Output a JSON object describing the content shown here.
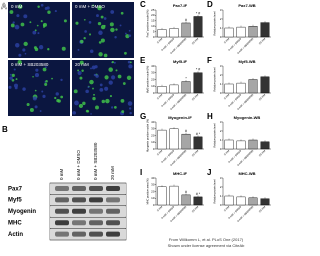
{
  "figure": {
    "panel_a": {
      "letter": "A",
      "images": [
        "0 mM",
        "0 mM + DMSO",
        "0 mM + SB203580",
        "20 mM"
      ]
    },
    "panel_b": {
      "letter": "B",
      "columns": [
        "0 mM",
        "0 mM + DMSO",
        "0 mM + SB203580",
        "20 mM"
      ],
      "rows": [
        "Pax7",
        "Myf5",
        "Myogenin",
        "MHC",
        "Actin"
      ]
    },
    "credit": [
      "From Willkomm L, et al. PLoS One (2017)",
      "Shown under license agreement via CiteAb"
    ]
  },
  "chart_data": [
    {
      "type": "bar",
      "letter": "C",
      "title": "Pax7-IF",
      "ylabel": "Pax7 positive nuclei (%)",
      "categories": [
        "0 mM",
        "0 mM + DMSO",
        "0 mM + SB203580",
        "20 mM"
      ],
      "values": [
        7,
        8,
        13,
        19
      ],
      "colors": [
        "#ffffff",
        "#ffffff",
        "#a6a6a6",
        "#333333"
      ],
      "markers": [
        null,
        null,
        "#",
        "* #"
      ],
      "ylim": [
        0,
        25
      ],
      "yticks": [
        0,
        5,
        10,
        15,
        20,
        25
      ]
    },
    {
      "type": "bar",
      "letter": "D",
      "title": "Pax7-WB",
      "ylabel": "Relative protein level",
      "categories": [
        "0 mM",
        "0 mM + DMSO",
        "0 mM + SB203580",
        "20 mM"
      ],
      "values": [
        1,
        1.1,
        1.2,
        1.6
      ],
      "colors": [
        "#ffffff",
        "#ffffff",
        "#a6a6a6",
        "#333333"
      ],
      "markers": [
        null,
        null,
        null,
        null
      ],
      "ylim": [
        0,
        3
      ],
      "yticks": [
        0,
        1,
        2,
        3
      ]
    },
    {
      "type": "bar",
      "letter": "E",
      "title": "Myf5-IF",
      "ylabel": "Myf5 positive nuclei (%)",
      "categories": [
        "0 mM",
        "0 mM + DMSO",
        "0 mM + SB203580",
        "20 mM"
      ],
      "values": [
        10,
        12,
        17,
        30
      ],
      "colors": [
        "#ffffff",
        "#ffffff",
        "#a6a6a6",
        "#333333"
      ],
      "markers": [
        null,
        null,
        "*",
        "* #"
      ],
      "ylim": [
        0,
        40
      ],
      "yticks": [
        0,
        10,
        20,
        30,
        40
      ]
    },
    {
      "type": "bar",
      "letter": "F",
      "title": "Myf5-WB",
      "ylabel": "Relative protein level",
      "categories": [
        "0 mM",
        "0 mM + DMSO",
        "0 mM + SB203580",
        "20 mM"
      ],
      "values": [
        1,
        1.1,
        1.5,
        1.8
      ],
      "colors": [
        "#ffffff",
        "#ffffff",
        "#a6a6a6",
        "#333333"
      ],
      "markers": [
        null,
        null,
        null,
        null
      ],
      "ylim": [
        0,
        3
      ],
      "yticks": [
        0,
        1,
        2,
        3
      ]
    },
    {
      "type": "bar",
      "letter": "G",
      "title": "Myogenin-IF",
      "ylabel": "Myogenin positive nuclei (%)",
      "categories": [
        "0 mM",
        "0 mM + DMSO",
        "0 mM + SB203580",
        "20 mM"
      ],
      "values": [
        28,
        30,
        22,
        18
      ],
      "colors": [
        "#ffffff",
        "#ffffff",
        "#a6a6a6",
        "#333333"
      ],
      "markers": [
        null,
        null,
        "#",
        "# *"
      ],
      "ylim": [
        0,
        40
      ],
      "yticks": [
        0,
        10,
        20,
        30,
        40
      ]
    },
    {
      "type": "bar",
      "letter": "H",
      "title": "Myogenin-WB",
      "ylabel": "Relative protein level",
      "categories": [
        "0 mM",
        "0 mM + DMSO",
        "0 mM + SB203580",
        "20 mM"
      ],
      "values": [
        1,
        0.9,
        1,
        0.8
      ],
      "colors": [
        "#ffffff",
        "#ffffff",
        "#a6a6a6",
        "#333333"
      ],
      "markers": [
        null,
        null,
        null,
        null
      ],
      "ylim": [
        0,
        3
      ],
      "yticks": [
        0,
        1,
        2,
        3
      ]
    },
    {
      "type": "bar",
      "letter": "I",
      "title": "MHC-IF",
      "ylabel": "MHC positive area (%)",
      "categories": [
        "0 mM",
        "0 mM + DMSO",
        "0 mM + SB203580",
        "20 mM"
      ],
      "values": [
        27,
        28,
        15,
        12
      ],
      "colors": [
        "#ffffff",
        "#ffffff",
        "#a6a6a6",
        "#333333"
      ],
      "markers": [
        null,
        null,
        "#",
        "# *"
      ],
      "ylim": [
        0,
        40
      ],
      "yticks": [
        0,
        10,
        20,
        30,
        40
      ]
    },
    {
      "type": "bar",
      "letter": "J",
      "title": "MHC-WB",
      "ylabel": "Relative protein level",
      "categories": [
        "0 mM",
        "0 mM + DMSO",
        "0 mM + SB203580",
        "20 mM"
      ],
      "values": [
        1,
        0.9,
        0.8,
        0.7
      ],
      "colors": [
        "#ffffff",
        "#ffffff",
        "#a6a6a6",
        "#333333"
      ],
      "markers": [
        null,
        null,
        null,
        null
      ],
      "ylim": [
        0,
        3
      ],
      "yticks": [
        0,
        1,
        2,
        3
      ]
    }
  ]
}
